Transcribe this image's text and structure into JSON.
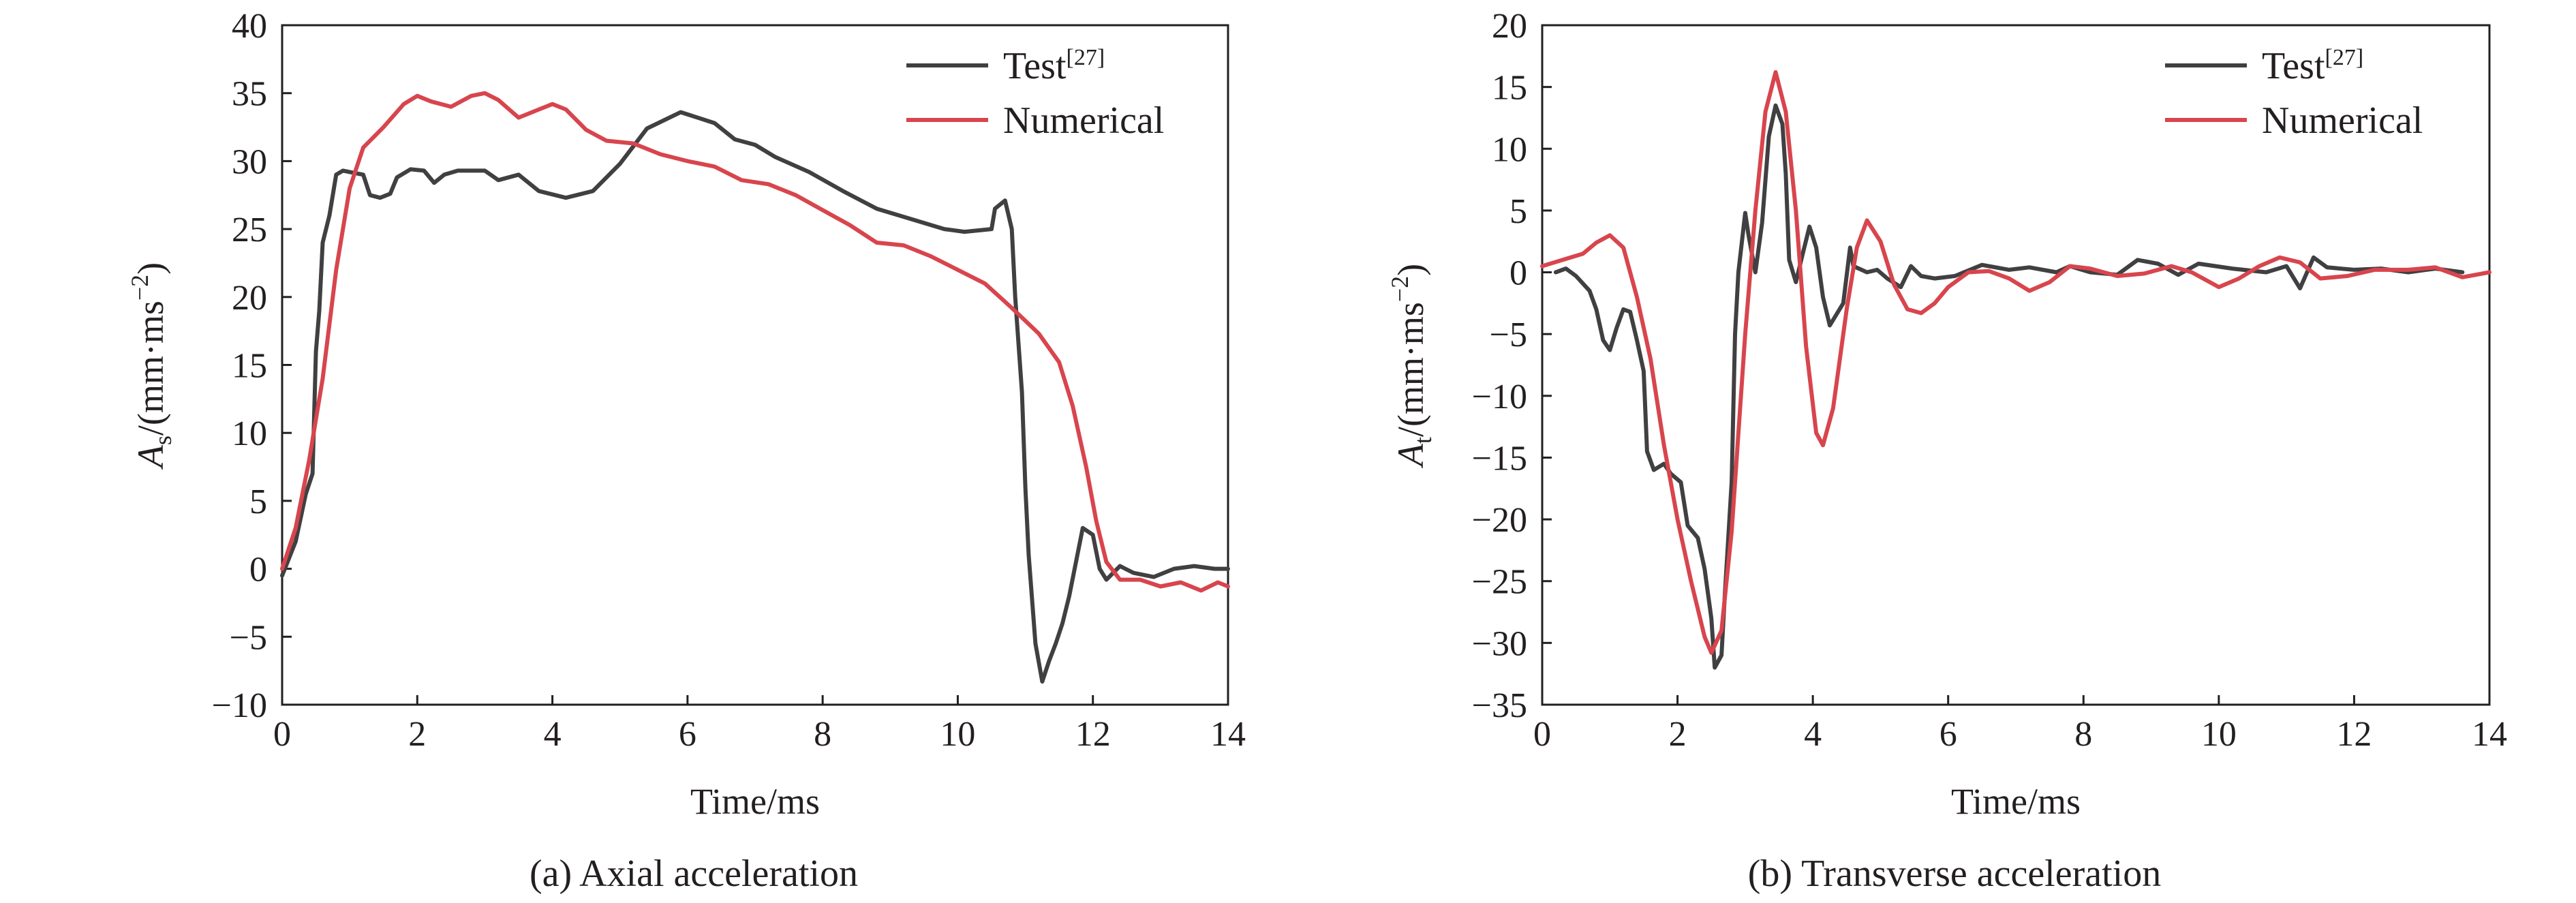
{
  "chart_data": [
    {
      "type": "line",
      "title": "",
      "caption": "(a) Axial acceleration",
      "xlabel": "Time/ms",
      "ylabel": {
        "symbol": "A",
        "subscript": "s",
        "unit_prefix": "/(mm·ms",
        "unit_exp": "−2",
        "unit_suffix": ")"
      },
      "xlim": [
        0,
        14
      ],
      "ylim": [
        -10,
        40
      ],
      "xticks": [
        "0",
        "2",
        "4",
        "6",
        "8",
        "10",
        "12",
        "14"
      ],
      "yticks": [
        "−10",
        "−5",
        "0",
        "5",
        "10",
        "15",
        "20",
        "25",
        "30",
        "35",
        "40"
      ],
      "xtick_values": [
        0,
        2,
        4,
        6,
        8,
        10,
        12,
        14
      ],
      "ytick_values": [
        -10,
        -5,
        0,
        5,
        10,
        15,
        20,
        25,
        30,
        35,
        40
      ],
      "grid": false,
      "legend_position": "top-right",
      "series": [
        {
          "name": "Test",
          "name_sup": "[27]",
          "color": "#404042",
          "points": [
            [
              0,
              -0.5
            ],
            [
              0.2,
              2
            ],
            [
              0.35,
              5.5
            ],
            [
              0.45,
              7
            ],
            [
              0.5,
              16
            ],
            [
              0.55,
              19
            ],
            [
              0.6,
              24
            ],
            [
              0.7,
              26
            ],
            [
              0.8,
              29
            ],
            [
              0.9,
              29.3
            ],
            [
              1.0,
              29.2
            ],
            [
              1.2,
              29
            ],
            [
              1.3,
              27.5
            ],
            [
              1.45,
              27.3
            ],
            [
              1.6,
              27.6
            ],
            [
              1.7,
              28.8
            ],
            [
              1.9,
              29.4
            ],
            [
              2.1,
              29.3
            ],
            [
              2.25,
              28.4
            ],
            [
              2.4,
              29
            ],
            [
              2.6,
              29.3
            ],
            [
              3.0,
              29.3
            ],
            [
              3.2,
              28.6
            ],
            [
              3.5,
              29
            ],
            [
              3.8,
              27.8
            ],
            [
              4.2,
              27.3
            ],
            [
              4.6,
              27.8
            ],
            [
              5.0,
              29.8
            ],
            [
              5.4,
              32.4
            ],
            [
              5.9,
              33.6
            ],
            [
              6.4,
              32.8
            ],
            [
              6.7,
              31.6
            ],
            [
              7.0,
              31.2
            ],
            [
              7.3,
              30.3
            ],
            [
              7.8,
              29.2
            ],
            [
              8.3,
              27.8
            ],
            [
              8.8,
              26.5
            ],
            [
              9.4,
              25.6
            ],
            [
              9.8,
              25
            ],
            [
              10.1,
              24.8
            ],
            [
              10.5,
              25
            ],
            [
              10.55,
              26.5
            ],
            [
              10.7,
              27.1
            ],
            [
              10.8,
              25
            ],
            [
              10.85,
              20
            ],
            [
              10.95,
              13
            ],
            [
              11.0,
              6
            ],
            [
              11.05,
              1
            ],
            [
              11.15,
              -5.5
            ],
            [
              11.25,
              -8.3
            ],
            [
              11.35,
              -6.8
            ],
            [
              11.45,
              -5.5
            ],
            [
              11.55,
              -4
            ],
            [
              11.65,
              -2
            ],
            [
              11.75,
              0.5
            ],
            [
              11.85,
              3
            ],
            [
              12.0,
              2.5
            ],
            [
              12.1,
              0
            ],
            [
              12.2,
              -0.8
            ],
            [
              12.4,
              0.2
            ],
            [
              12.6,
              -0.3
            ],
            [
              12.9,
              -0.6
            ],
            [
              13.2,
              0
            ],
            [
              13.5,
              0.2
            ],
            [
              13.8,
              0
            ],
            [
              14,
              0
            ]
          ]
        },
        {
          "name": "Numerical",
          "name_sup": "",
          "color": "#d8454d",
          "points": [
            [
              0,
              0
            ],
            [
              0.2,
              3
            ],
            [
              0.4,
              8
            ],
            [
              0.6,
              14
            ],
            [
              0.8,
              22
            ],
            [
              1.0,
              28
            ],
            [
              1.2,
              31
            ],
            [
              1.5,
              32.5
            ],
            [
              1.8,
              34.2
            ],
            [
              2.0,
              34.8
            ],
            [
              2.2,
              34.4
            ],
            [
              2.5,
              34
            ],
            [
              2.8,
              34.8
            ],
            [
              3.0,
              35
            ],
            [
              3.2,
              34.5
            ],
            [
              3.5,
              33.2
            ],
            [
              3.8,
              33.8
            ],
            [
              4.0,
              34.2
            ],
            [
              4.2,
              33.8
            ],
            [
              4.5,
              32.3
            ],
            [
              4.8,
              31.5
            ],
            [
              5.2,
              31.3
            ],
            [
              5.6,
              30.5
            ],
            [
              6.0,
              30
            ],
            [
              6.4,
              29.6
            ],
            [
              6.8,
              28.6
            ],
            [
              7.2,
              28.3
            ],
            [
              7.6,
              27.5
            ],
            [
              8.0,
              26.4
            ],
            [
              8.4,
              25.3
            ],
            [
              8.8,
              24
            ],
            [
              9.2,
              23.8
            ],
            [
              9.6,
              23
            ],
            [
              10.0,
              22
            ],
            [
              10.4,
              21
            ],
            [
              10.8,
              19.2
            ],
            [
              11.2,
              17.3
            ],
            [
              11.5,
              15.2
            ],
            [
              11.7,
              12
            ],
            [
              11.9,
              7.5
            ],
            [
              12.05,
              3.5
            ],
            [
              12.2,
              0.5
            ],
            [
              12.4,
              -0.8
            ],
            [
              12.7,
              -0.8
            ],
            [
              13.0,
              -1.3
            ],
            [
              13.3,
              -1
            ],
            [
              13.6,
              -1.6
            ],
            [
              13.85,
              -1
            ],
            [
              14,
              -1.3
            ]
          ]
        }
      ]
    },
    {
      "type": "line",
      "title": "",
      "caption": "(b) Transverse acceleration",
      "xlabel": "Time/ms",
      "ylabel": {
        "symbol": "A",
        "subscript": "t",
        "unit_prefix": "/(mm·ms",
        "unit_exp": "−2",
        "unit_suffix": ")"
      },
      "xlim": [
        0,
        14
      ],
      "ylim": [
        -35,
        20
      ],
      "xticks": [
        "0",
        "2",
        "4",
        "6",
        "8",
        "10",
        "12",
        "14"
      ],
      "yticks": [
        "−35",
        "−30",
        "−25",
        "−20",
        "−15",
        "−10",
        "−5",
        "0",
        "5",
        "10",
        "15",
        "20"
      ],
      "xtick_values": [
        0,
        2,
        4,
        6,
        8,
        10,
        12,
        14
      ],
      "ytick_values": [
        -35,
        -30,
        -25,
        -20,
        -15,
        -10,
        -5,
        0,
        5,
        10,
        15,
        20
      ],
      "grid": false,
      "legend_position": "top-right",
      "series": [
        {
          "name": "Test",
          "name_sup": "[27]",
          "color": "#404042",
          "points": [
            [
              0.2,
              0
            ],
            [
              0.35,
              0.3
            ],
            [
              0.5,
              -0.3
            ],
            [
              0.7,
              -1.5
            ],
            [
              0.8,
              -3
            ],
            [
              0.9,
              -5.5
            ],
            [
              1.0,
              -6.3
            ],
            [
              1.1,
              -4.5
            ],
            [
              1.2,
              -3
            ],
            [
              1.3,
              -3.2
            ],
            [
              1.4,
              -5.5
            ],
            [
              1.5,
              -8
            ],
            [
              1.55,
              -14.5
            ],
            [
              1.65,
              -16
            ],
            [
              1.8,
              -15.5
            ],
            [
              1.9,
              -16.3
            ],
            [
              2.05,
              -17
            ],
            [
              2.15,
              -20.5
            ],
            [
              2.3,
              -21.5
            ],
            [
              2.4,
              -24
            ],
            [
              2.5,
              -28
            ],
            [
              2.55,
              -32
            ],
            [
              2.65,
              -31
            ],
            [
              2.7,
              -26
            ],
            [
              2.8,
              -17
            ],
            [
              2.85,
              -5
            ],
            [
              2.9,
              0
            ],
            [
              3.0,
              4.8
            ],
            [
              3.05,
              3
            ],
            [
              3.15,
              0
            ],
            [
              3.25,
              4
            ],
            [
              3.35,
              11
            ],
            [
              3.45,
              13.5
            ],
            [
              3.55,
              12
            ],
            [
              3.6,
              8
            ],
            [
              3.65,
              1
            ],
            [
              3.75,
              -0.8
            ],
            [
              3.85,
              1.5
            ],
            [
              3.95,
              3.7
            ],
            [
              4.05,
              2
            ],
            [
              4.15,
              -2
            ],
            [
              4.25,
              -4.3
            ],
            [
              4.45,
              -2.5
            ],
            [
              4.55,
              2
            ],
            [
              4.6,
              0.5
            ],
            [
              4.8,
              0
            ],
            [
              4.95,
              0.2
            ],
            [
              5.1,
              -0.5
            ],
            [
              5.3,
              -1.2
            ],
            [
              5.45,
              0.5
            ],
            [
              5.6,
              -0.3
            ],
            [
              5.8,
              -0.5
            ],
            [
              6.1,
              -0.3
            ],
            [
              6.5,
              0.6
            ],
            [
              6.9,
              0.2
            ],
            [
              7.2,
              0.4
            ],
            [
              7.6,
              0
            ],
            [
              7.8,
              0.5
            ],
            [
              8.1,
              0
            ],
            [
              8.5,
              -0.2
            ],
            [
              8.8,
              1
            ],
            [
              9.1,
              0.7
            ],
            [
              9.4,
              -0.2
            ],
            [
              9.7,
              0.7
            ],
            [
              10.2,
              0.3
            ],
            [
              10.7,
              0
            ],
            [
              11.0,
              0.5
            ],
            [
              11.2,
              -1.3
            ],
            [
              11.4,
              1.2
            ],
            [
              11.6,
              0.4
            ],
            [
              12.0,
              0.2
            ],
            [
              12.4,
              0.3
            ],
            [
              12.8,
              0
            ],
            [
              13.2,
              0.3
            ],
            [
              13.6,
              0
            ]
          ]
        },
        {
          "name": "Numerical",
          "name_sup": "",
          "color": "#d8454d",
          "points": [
            [
              0,
              0.5
            ],
            [
              0.3,
              1
            ],
            [
              0.6,
              1.5
            ],
            [
              0.8,
              2.4
            ],
            [
              1.0,
              3
            ],
            [
              1.2,
              2
            ],
            [
              1.4,
              -2
            ],
            [
              1.6,
              -7
            ],
            [
              1.8,
              -14
            ],
            [
              2.0,
              -20
            ],
            [
              2.2,
              -25
            ],
            [
              2.4,
              -29.5
            ],
            [
              2.5,
              -30.8
            ],
            [
              2.65,
              -29
            ],
            [
              2.8,
              -21
            ],
            [
              3.0,
              -5
            ],
            [
              3.15,
              5
            ],
            [
              3.3,
              13
            ],
            [
              3.45,
              16.2
            ],
            [
              3.6,
              13
            ],
            [
              3.75,
              5
            ],
            [
              3.9,
              -6
            ],
            [
              4.05,
              -13
            ],
            [
              4.15,
              -14
            ],
            [
              4.3,
              -11
            ],
            [
              4.5,
              -3
            ],
            [
              4.65,
              2
            ],
            [
              4.8,
              4.2
            ],
            [
              5.0,
              2.5
            ],
            [
              5.2,
              -1
            ],
            [
              5.4,
              -3
            ],
            [
              5.6,
              -3.3
            ],
            [
              5.8,
              -2.5
            ],
            [
              6.0,
              -1.2
            ],
            [
              6.3,
              0
            ],
            [
              6.6,
              0.1
            ],
            [
              6.9,
              -0.5
            ],
            [
              7.2,
              -1.5
            ],
            [
              7.5,
              -0.8
            ],
            [
              7.8,
              0.5
            ],
            [
              8.1,
              0.3
            ],
            [
              8.5,
              -0.3
            ],
            [
              8.9,
              -0.1
            ],
            [
              9.3,
              0.5
            ],
            [
              9.6,
              0
            ],
            [
              10.0,
              -1.2
            ],
            [
              10.3,
              -0.5
            ],
            [
              10.6,
              0.5
            ],
            [
              10.9,
              1.2
            ],
            [
              11.2,
              0.8
            ],
            [
              11.5,
              -0.5
            ],
            [
              11.9,
              -0.3
            ],
            [
              12.3,
              0.2
            ],
            [
              12.8,
              0.2
            ],
            [
              13.2,
              0.4
            ],
            [
              13.6,
              -0.4
            ],
            [
              14,
              0
            ]
          ]
        }
      ]
    }
  ]
}
